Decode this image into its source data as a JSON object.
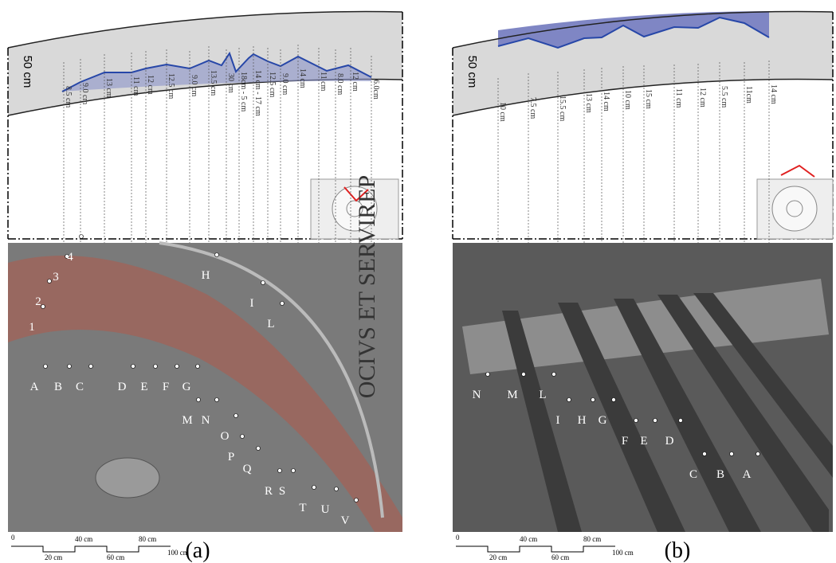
{
  "panels": [
    {
      "panel_label": "(a)",
      "axis_label": "50 cm",
      "measurements": [
        "8.5 cm",
        "9.0 cm",
        "13 cm",
        "11 cm",
        "12 cm",
        "12.5 cm",
        "9.0 cm",
        "13.5 cm",
        "30 cm",
        "18cm - 5 cm",
        "14 cm - 17 cm",
        "12.5 cm",
        "9.0 cm",
        "14 cm",
        "11 cm",
        "8.0 cm",
        "12 cm",
        "6.0cm"
      ],
      "point_labels": [
        "1",
        "2",
        "3",
        "4",
        "A",
        "B",
        "C",
        "D",
        "E",
        "F",
        "G",
        "H",
        "I",
        "L",
        "M",
        "N",
        "O",
        "P",
        "Q",
        "R",
        "S",
        "T",
        "U",
        "V"
      ],
      "scale_labels": [
        "0",
        "20 cm",
        "40 cm",
        "60 cm",
        "80 cm",
        "100 cm"
      ],
      "wall_text": "OCIVS ET SERVIREP"
    },
    {
      "panel_label": "(b)",
      "axis_label": "50 cm",
      "measurements": [
        "10 cm",
        "7.5 cm",
        "15.5 cm",
        "13 cm",
        "14 cm",
        "10 cm",
        "15 cm",
        "11 cm",
        "12 cm",
        "5.5 cm",
        "11cm",
        "14 cm"
      ],
      "point_labels": [
        "N",
        "M",
        "L",
        "I",
        "H",
        "G",
        "F",
        "E",
        "D",
        "C",
        "B",
        "A"
      ],
      "scale_labels": [
        "0",
        "20 cm",
        "40 cm",
        "60 cm",
        "80 cm",
        "100 cm"
      ]
    }
  ]
}
